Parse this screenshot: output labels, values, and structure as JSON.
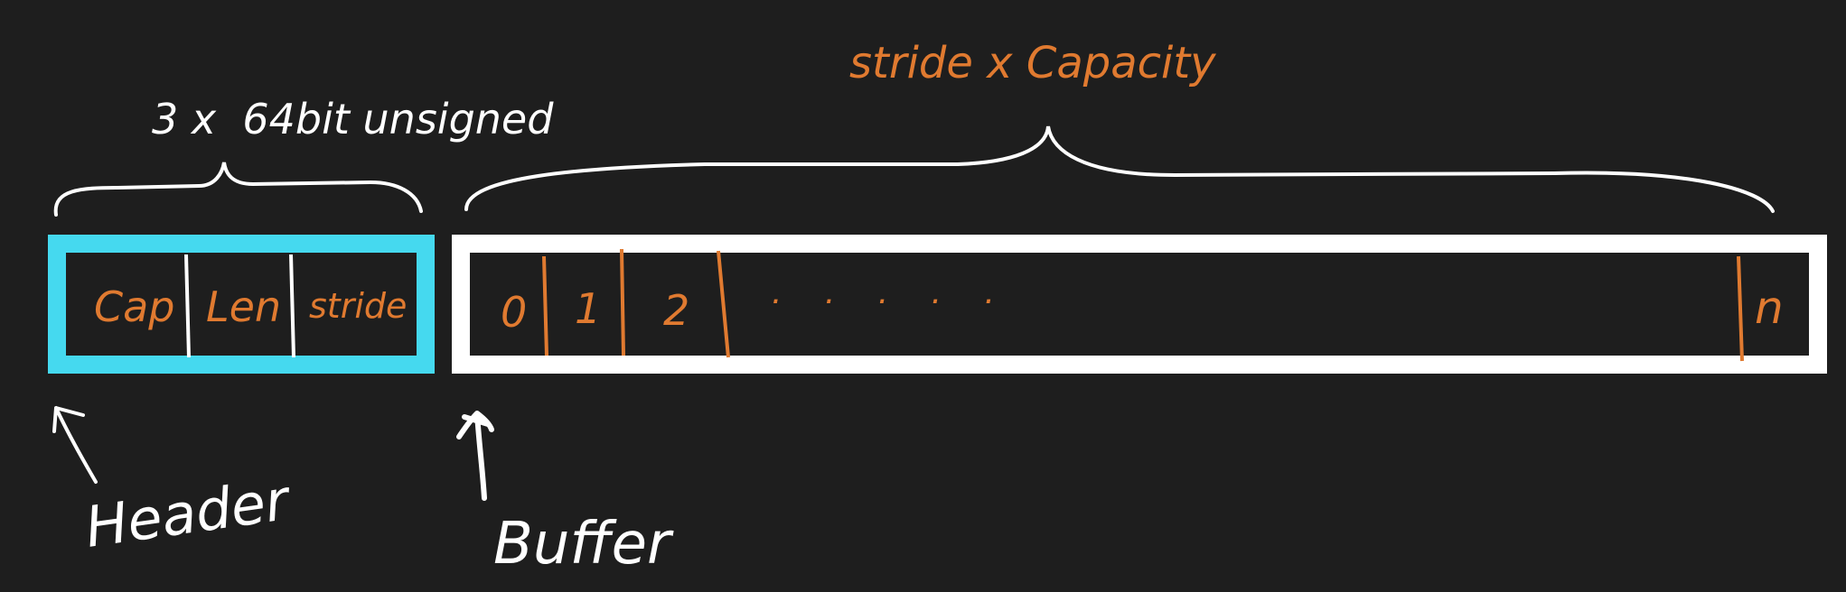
{
  "colors": {
    "background": "#1e1e1e",
    "ink_white": "#ffffff",
    "ink_orange": "#e07a30",
    "header_box": "#45d9ef"
  },
  "header": {
    "brace_label": "3 x  64bit unsigned",
    "fields": [
      "Cap",
      "Len",
      "stride"
    ],
    "pointer_label": "Header"
  },
  "buffer": {
    "brace_label": "stride x Capacity",
    "slots": [
      "0",
      "1",
      "2"
    ],
    "ellipsis": ". . . . .",
    "last_slot": "n",
    "pointer_label": "Buffer"
  }
}
